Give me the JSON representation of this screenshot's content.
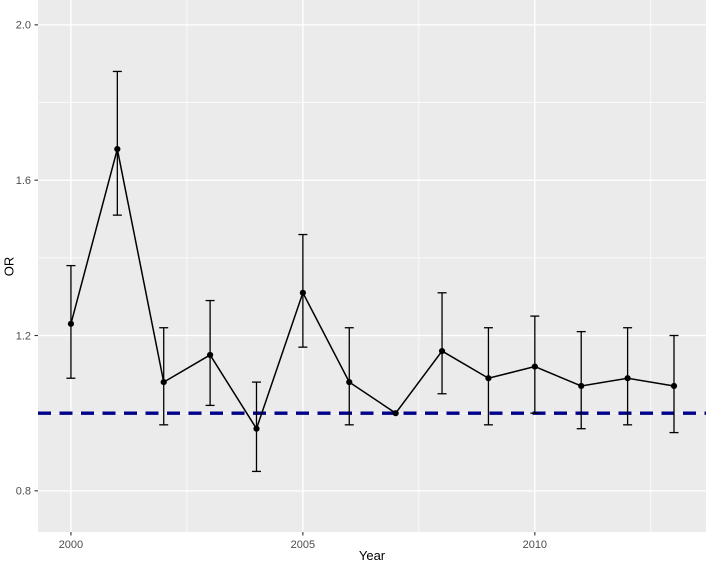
{
  "chart_data": {
    "type": "line",
    "title": "",
    "xlabel": "Year",
    "ylabel": "OR",
    "x": [
      2000,
      2001,
      2002,
      2003,
      2004,
      2005,
      2006,
      2007,
      2008,
      2009,
      2010,
      2011,
      2012,
      2013
    ],
    "series": [
      {
        "name": "OR",
        "values": [
          1.23,
          1.68,
          1.08,
          1.15,
          0.96,
          1.31,
          1.08,
          1.0,
          1.16,
          1.09,
          1.12,
          1.07,
          1.09,
          1.07
        ],
        "ci_low": [
          1.09,
          1.51,
          0.97,
          1.02,
          0.85,
          1.17,
          0.97,
          1.0,
          1.05,
          0.97,
          1.0,
          0.96,
          0.97,
          0.95
        ],
        "ci_high": [
          1.38,
          1.88,
          1.22,
          1.29,
          1.08,
          1.46,
          1.22,
          1.0,
          1.31,
          1.22,
          1.25,
          1.21,
          1.22,
          1.2
        ]
      }
    ],
    "reference_line": {
      "y": 1.0,
      "style": "dashed",
      "color": "#00008B"
    },
    "x_ticks": [
      {
        "value": 2000,
        "label": "2000"
      },
      {
        "value": 2005,
        "label": "2005"
      },
      {
        "value": 2010,
        "label": "2010"
      }
    ],
    "y_ticks": [
      {
        "value": 0.8,
        "label": "0.8"
      },
      {
        "value": 1.2,
        "label": "1.2"
      },
      {
        "value": 1.6,
        "label": "1.6"
      },
      {
        "value": 2.0,
        "label": "2.0"
      }
    ],
    "x_minor_ticks": [
      2002.5,
      2007.5,
      2012.5
    ],
    "y_minor_ticks": [
      1.0,
      1.4,
      1.8
    ],
    "xlim": [
      1999.29,
      2013.69
    ],
    "ylim": [
      0.694,
      2.064
    ],
    "grid": true,
    "legend": "none",
    "theme": {
      "panel_bg": "#EBEBEB",
      "grid_color": "#FFFFFF",
      "line_color": "#000000",
      "point_color": "#000000",
      "error_bar_color": "#000000",
      "tick_label_color": "#4D4D4D",
      "tick_mark_color": "#333333",
      "axis_title_color": "#000000"
    }
  }
}
